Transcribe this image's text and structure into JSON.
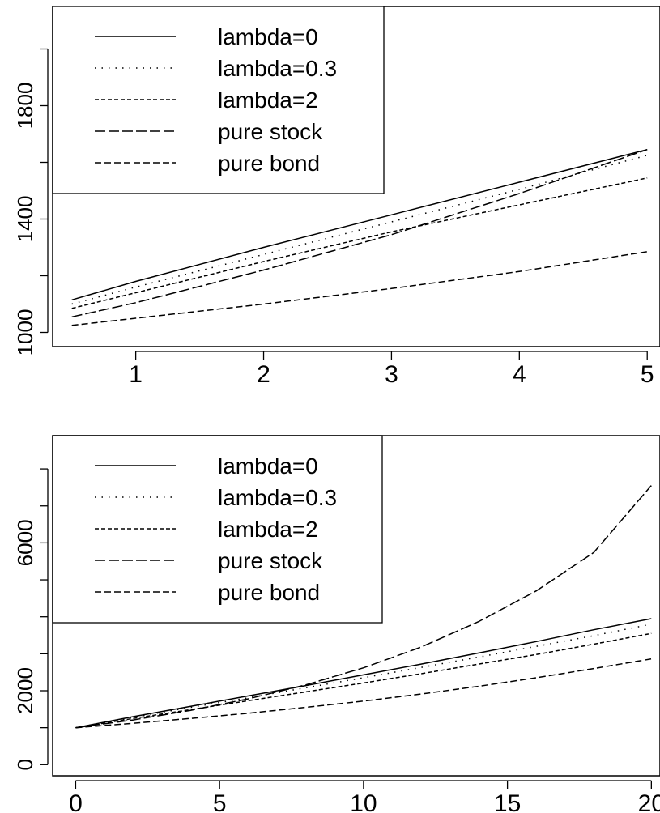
{
  "chart_data": [
    {
      "type": "line",
      "title": "",
      "xlabel": "",
      "ylabel": "",
      "xlim": [
        0.35,
        5.1
      ],
      "ylim": [
        950,
        2150
      ],
      "x_ticks": [
        1,
        2,
        3,
        4,
        5
      ],
      "y_ticks": [
        1000,
        1400,
        1800
      ],
      "legend_position": "top-left",
      "grid": false,
      "series": [
        {
          "name": "lambda=0",
          "dash": "solid",
          "x": [
            0.5,
            1,
            2,
            3,
            4,
            5
          ],
          "values": [
            1115,
            1180,
            1300,
            1415,
            1530,
            1645
          ]
        },
        {
          "name": "lambda=0.3",
          "dash": "dotted",
          "x": [
            0.5,
            1,
            2,
            3,
            4,
            5
          ],
          "values": [
            1100,
            1160,
            1275,
            1390,
            1505,
            1625
          ]
        },
        {
          "name": "lambda=2",
          "dash": "short-dash",
          "x": [
            0.5,
            1,
            2,
            3,
            4,
            5
          ],
          "values": [
            1085,
            1140,
            1250,
            1355,
            1450,
            1545
          ]
        },
        {
          "name": "pure stock",
          "dash": "long-dash",
          "x": [
            0.5,
            1,
            2,
            3,
            4,
            5
          ],
          "values": [
            1055,
            1105,
            1220,
            1345,
            1490,
            1645
          ]
        },
        {
          "name": "pure bond",
          "dash": "medium-dash",
          "x": [
            0.5,
            1,
            2,
            3,
            4,
            5
          ],
          "values": [
            1025,
            1050,
            1100,
            1155,
            1215,
            1285
          ]
        }
      ]
    },
    {
      "type": "line",
      "title": "",
      "xlabel": "",
      "ylabel": "",
      "xlim": [
        -0.8,
        20.3
      ],
      "ylim": [
        -300,
        8900
      ],
      "x_ticks": [
        0,
        5,
        10,
        15,
        20
      ],
      "y_ticks": [
        0,
        2000,
        6000
      ],
      "legend_position": "top-left",
      "grid": false,
      "series": [
        {
          "name": "lambda=0",
          "dash": "solid",
          "x": [
            0,
            2,
            4,
            6,
            8,
            10,
            12,
            14,
            16,
            18,
            20
          ],
          "values": [
            1000,
            1300,
            1580,
            1860,
            2140,
            2430,
            2720,
            3020,
            3330,
            3650,
            3950
          ]
        },
        {
          "name": "lambda=0.3",
          "dash": "dotted",
          "x": [
            0,
            2,
            4,
            6,
            8,
            10,
            12,
            14,
            16,
            18,
            20
          ],
          "values": [
            1000,
            1280,
            1550,
            1810,
            2080,
            2350,
            2630,
            2910,
            3200,
            3490,
            3800
          ]
        },
        {
          "name": "lambda=2",
          "dash": "short-dash",
          "x": [
            0,
            2,
            4,
            6,
            8,
            10,
            12,
            14,
            16,
            18,
            20
          ],
          "values": [
            1000,
            1250,
            1490,
            1730,
            1970,
            2210,
            2460,
            2720,
            2980,
            3260,
            3550
          ]
        },
        {
          "name": "pure stock",
          "dash": "long-dash",
          "x": [
            0,
            2,
            4,
            6,
            8,
            10,
            12,
            14,
            16,
            18,
            20
          ],
          "values": [
            1000,
            1210,
            1470,
            1780,
            2160,
            2620,
            3180,
            3870,
            4700,
            5740,
            7550
          ]
        },
        {
          "name": "pure bond",
          "dash": "medium-dash",
          "x": [
            0,
            2,
            4,
            6,
            8,
            10,
            12,
            14,
            16,
            18,
            20
          ],
          "values": [
            1000,
            1120,
            1250,
            1390,
            1550,
            1720,
            1910,
            2120,
            2350,
            2600,
            2860
          ]
        }
      ]
    }
  ],
  "colors": {
    "line": "#000000",
    "background": "#ffffff"
  }
}
